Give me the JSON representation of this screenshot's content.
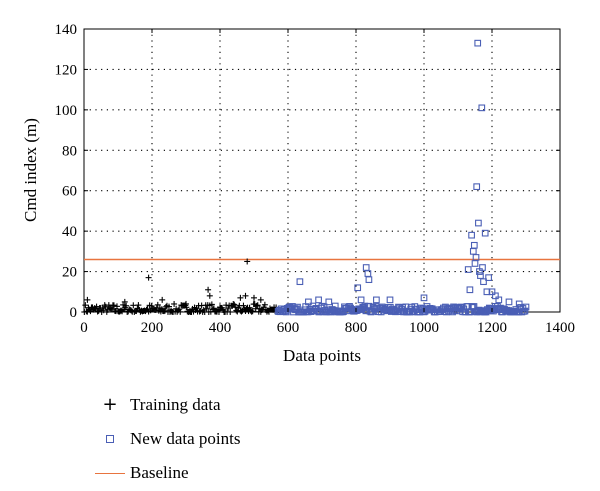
{
  "chart_data": {
    "type": "scatter",
    "title": "",
    "xlabel": "Data points",
    "ylabel": "Cmd index (m)",
    "xlim": [
      0,
      1400
    ],
    "ylim": [
      0,
      140
    ],
    "xticks": [
      0,
      200,
      400,
      600,
      800,
      1000,
      1200,
      1400
    ],
    "yticks": [
      0,
      20,
      40,
      60,
      80,
      100,
      120,
      140
    ],
    "grid": true,
    "legend_position": "below",
    "series": [
      {
        "name": "Training data",
        "marker": "plus",
        "color": "#000000",
        "x_range": [
          1,
          570
        ],
        "typical_range": [
          0,
          4
        ],
        "outliers": [
          [
            10,
            6
          ],
          [
            190,
            17
          ],
          [
            230,
            6
          ],
          [
            365,
            11
          ],
          [
            370,
            8
          ],
          [
            460,
            7
          ],
          [
            475,
            8
          ],
          [
            480,
            25
          ],
          [
            500,
            7
          ],
          [
            520,
            6
          ],
          [
            120,
            5
          ],
          [
            300,
            4
          ]
        ]
      },
      {
        "name": "New data points",
        "marker": "square",
        "color": "#4a5fb5",
        "x_range": [
          571,
          1300
        ],
        "typical_range": [
          0,
          3
        ],
        "outliers": [
          [
            635,
            15
          ],
          [
            660,
            5
          ],
          [
            690,
            6
          ],
          [
            720,
            5
          ],
          [
            805,
            12
          ],
          [
            815,
            6
          ],
          [
            830,
            22
          ],
          [
            835,
            19
          ],
          [
            838,
            16
          ],
          [
            860,
            6
          ],
          [
            900,
            6
          ],
          [
            1000,
            7
          ],
          [
            1140,
            38
          ],
          [
            1145,
            30
          ],
          [
            1148,
            33
          ],
          [
            1150,
            24
          ],
          [
            1153,
            27
          ],
          [
            1155,
            62
          ],
          [
            1158,
            133
          ],
          [
            1160,
            44
          ],
          [
            1163,
            20
          ],
          [
            1166,
            18
          ],
          [
            1170,
            101
          ],
          [
            1172,
            22
          ],
          [
            1175,
            15
          ],
          [
            1180,
            39
          ],
          [
            1185,
            10
          ],
          [
            1190,
            17
          ],
          [
            1200,
            10
          ],
          [
            1210,
            8
          ],
          [
            1220,
            6
          ],
          [
            1130,
            21
          ],
          [
            1135,
            11
          ],
          [
            1250,
            5
          ],
          [
            1280,
            4
          ]
        ]
      },
      {
        "name": "Baseline",
        "type": "hline",
        "color": "#e8743f",
        "y": 26
      }
    ]
  }
}
